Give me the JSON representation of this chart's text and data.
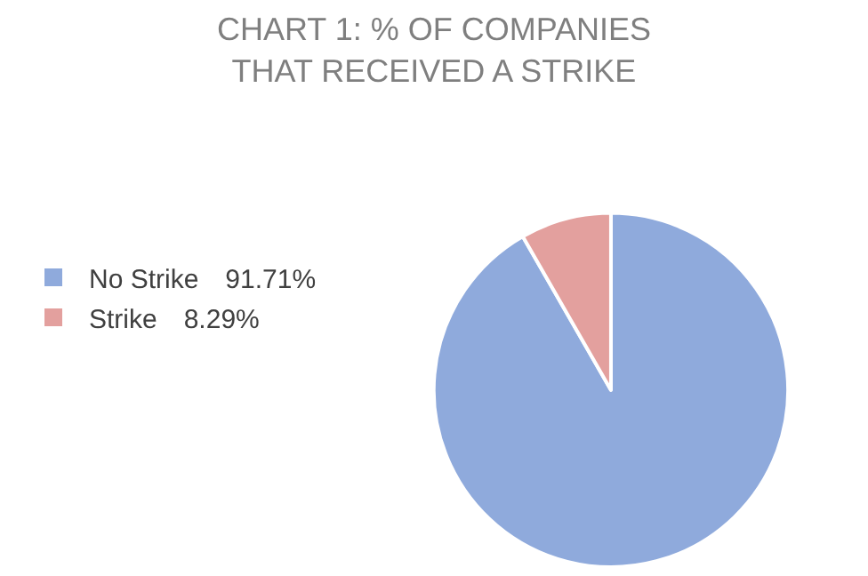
{
  "chart_data": {
    "type": "pie",
    "title": "CHART 1: % OF COMPANIES THAT RECEIVED A STRIKE",
    "categories": [
      "No Strike",
      "Strike"
    ],
    "values": [
      91.71,
      8.29
    ],
    "value_labels": [
      "91.71%",
      "8.29%"
    ],
    "colors": [
      "#8faadc",
      "#e3a09e"
    ],
    "legend": "left"
  }
}
